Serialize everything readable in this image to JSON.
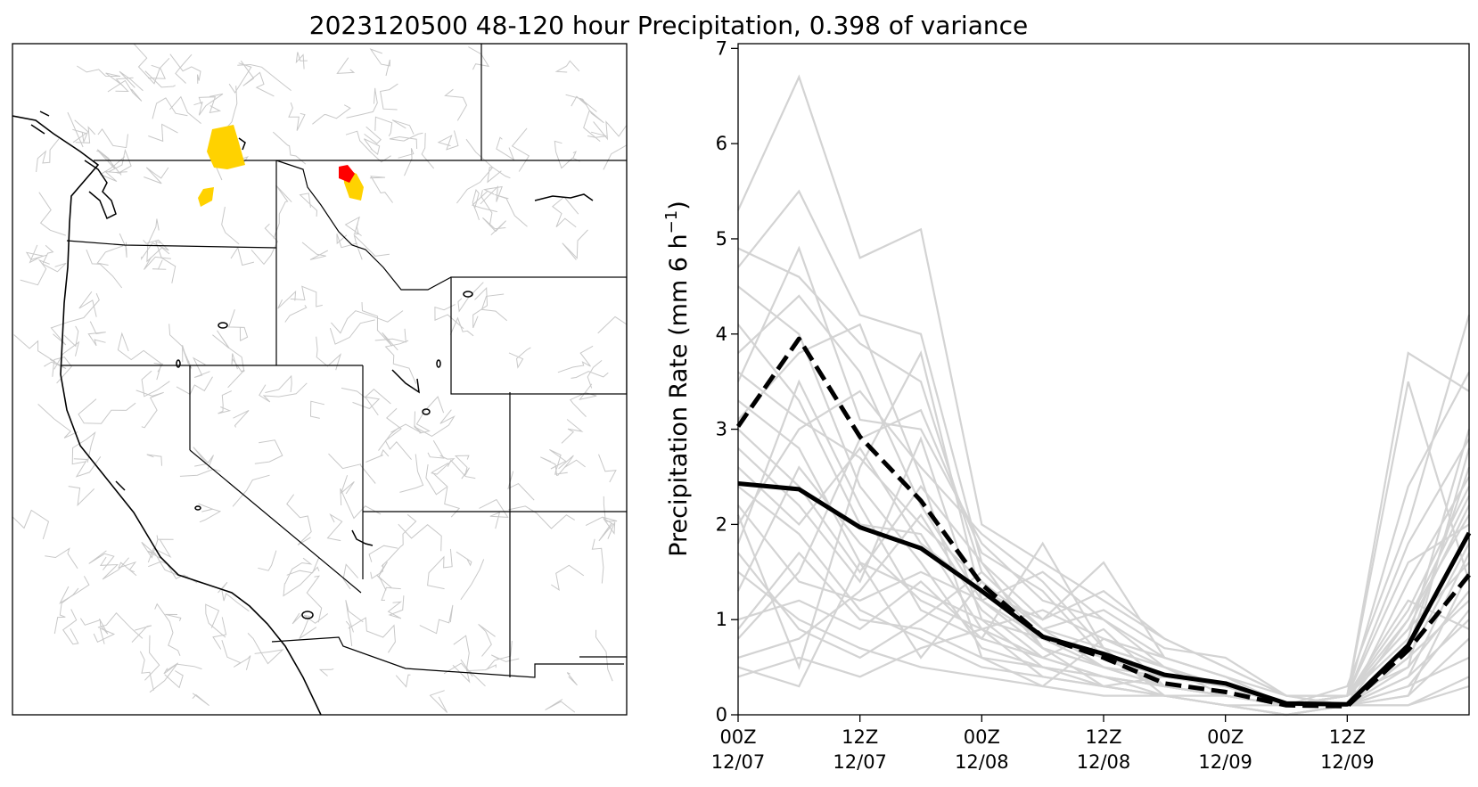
{
  "title": "2023120500 48-120 hour Precipitation, 0.398 of variance",
  "map_panel": {
    "highlight_colors": {
      "moderate": "#ffd200",
      "high": "#ff0000"
    },
    "border_color": "#000000",
    "basin_color": "#c8c8c8"
  },
  "chart_data": {
    "type": "line",
    "title": "2023120500 48-120 hour Precipitation, 0.398 of variance",
    "xlabel": "",
    "ylabel_main": "Precipitation Rate (mm 6 h",
    "ylabel_sup": "−1",
    "ylabel_tail": ")",
    "ylim": [
      0,
      7.05
    ],
    "yticks": [
      0,
      1,
      2,
      3,
      4,
      5,
      6,
      7
    ],
    "ytick_labels": [
      "0",
      "1",
      "2",
      "3",
      "4",
      "5",
      "6",
      "7"
    ],
    "xlim": [
      0,
      12
    ],
    "xticks": [
      {
        "x": 0,
        "line1": "00Z",
        "line2": "12/07"
      },
      {
        "x": 2,
        "line1": "12Z",
        "line2": "12/07"
      },
      {
        "x": 4,
        "line1": "00Z",
        "line2": "12/08"
      },
      {
        "x": 6,
        "line1": "12Z",
        "line2": "12/08"
      },
      {
        "x": 8,
        "line1": "00Z",
        "line2": "12/09"
      },
      {
        "x": 10,
        "line1": "12Z",
        "line2": "12/09"
      }
    ],
    "grid": false,
    "x": [
      0,
      1,
      2,
      3,
      4,
      5,
      6,
      7,
      8,
      9,
      10,
      11,
      12
    ],
    "solid_series": {
      "style": "solid",
      "color": "#000000",
      "values": [
        2.43,
        2.37,
        1.97,
        1.75,
        1.3,
        0.82,
        0.64,
        0.42,
        0.33,
        0.12,
        0.11,
        0.73,
        1.91
      ]
    },
    "dashed_series": {
      "style": "dashed",
      "color": "#000000",
      "values": [
        3.03,
        3.95,
        2.92,
        2.25,
        1.37,
        0.82,
        0.6,
        0.33,
        0.24,
        0.1,
        0.09,
        0.68,
        1.47
      ]
    },
    "members_color": "#d3d3d3",
    "members": [
      [
        5.3,
        6.7,
        4.8,
        5.1,
        2.0,
        1.6,
        1.2,
        0.8,
        0.5,
        0.2,
        0.2,
        3.8,
        3.4
      ],
      [
        4.7,
        5.5,
        4.2,
        4.0,
        1.6,
        1.0,
        1.6,
        0.6,
        0.4,
        0.1,
        0.2,
        3.5,
        1.4
      ],
      [
        3.5,
        4.9,
        3.1,
        3.0,
        1.8,
        1.2,
        1.0,
        0.5,
        0.3,
        0.1,
        0.3,
        2.0,
        4.2
      ],
      [
        2.1,
        0.5,
        2.6,
        3.8,
        1.2,
        0.8,
        0.5,
        0.3,
        0.2,
        0.1,
        0.1,
        0.7,
        2.6
      ],
      [
        0.5,
        0.3,
        1.6,
        0.6,
        1.4,
        0.7,
        0.3,
        0.4,
        0.3,
        0.1,
        0.2,
        1.0,
        2.3
      ],
      [
        1.0,
        1.2,
        0.9,
        1.4,
        0.8,
        1.8,
        0.7,
        0.2,
        0.1,
        0.1,
        0.2,
        1.6,
        2.0
      ],
      [
        2.8,
        2.2,
        1.4,
        2.9,
        1.0,
        0.5,
        0.4,
        0.2,
        0.1,
        0.0,
        0.1,
        0.4,
        1.7
      ],
      [
        3.1,
        3.8,
        4.1,
        2.5,
        0.6,
        0.3,
        0.8,
        0.5,
        0.2,
        0.1,
        0.2,
        0.9,
        2.2
      ],
      [
        1.7,
        0.9,
        0.6,
        1.0,
        1.5,
        0.9,
        1.1,
        0.7,
        0.6,
        0.2,
        0.1,
        0.3,
        1.1
      ],
      [
        4.1,
        3.3,
        2.0,
        1.9,
        0.9,
        0.6,
        0.4,
        0.3,
        0.2,
        0.1,
        0.1,
        0.5,
        2.8
      ],
      [
        0.8,
        1.5,
        2.9,
        3.2,
        1.7,
        1.3,
        0.6,
        0.3,
        0.2,
        0.1,
        0.2,
        1.2,
        0.9
      ],
      [
        2.4,
        1.9,
        1.1,
        0.8,
        0.5,
        0.4,
        0.3,
        0.2,
        0.1,
        0.0,
        0.1,
        0.2,
        1.5
      ],
      [
        3.8,
        4.4,
        3.6,
        2.2,
        1.2,
        0.7,
        0.5,
        0.4,
        0.3,
        0.1,
        0.2,
        0.8,
        3.0
      ],
      [
        1.3,
        2.6,
        1.8,
        1.2,
        0.9,
        1.1,
        0.8,
        0.6,
        0.4,
        0.2,
        0.1,
        0.6,
        1.8
      ],
      [
        0.6,
        0.8,
        1.3,
        2.1,
        1.1,
        0.6,
        0.9,
        0.3,
        0.2,
        0.1,
        0.1,
        0.3,
        0.6
      ],
      [
        4.5,
        4.0,
        2.4,
        1.6,
        0.7,
        0.5,
        0.3,
        0.2,
        0.2,
        0.1,
        0.1,
        1.4,
        2.5
      ],
      [
        2.0,
        3.0,
        3.4,
        2.6,
        1.9,
        1.4,
        0.7,
        0.5,
        0.3,
        0.1,
        0.2,
        0.5,
        1.3
      ],
      [
        1.5,
        1.0,
        0.7,
        0.5,
        0.4,
        0.3,
        0.2,
        0.2,
        0.1,
        0.0,
        0.1,
        0.1,
        0.4
      ],
      [
        3.3,
        2.8,
        1.6,
        1.3,
        1.0,
        0.8,
        0.6,
        0.4,
        0.3,
        0.1,
        0.1,
        1.0,
        2.1
      ],
      [
        4.9,
        4.6,
        3.9,
        3.5,
        1.5,
        0.9,
        0.5,
        0.3,
        0.2,
        0.1,
        0.2,
        2.4,
        3.6
      ],
      [
        0.9,
        1.7,
        1.0,
        0.9,
        0.6,
        0.5,
        0.4,
        0.3,
        0.2,
        0.1,
        0.1,
        0.2,
        0.8
      ],
      [
        2.6,
        2.0,
        2.8,
        1.8,
        1.3,
        1.0,
        1.3,
        0.8,
        0.5,
        0.2,
        0.2,
        0.9,
        1.6
      ],
      [
        1.8,
        3.5,
        2.2,
        1.1,
        0.8,
        0.6,
        0.4,
        0.3,
        0.2,
        0.1,
        0.1,
        0.4,
        1.0
      ],
      [
        3.0,
        2.4,
        1.5,
        2.4,
        1.6,
        0.7,
        0.5,
        0.3,
        0.2,
        0.1,
        0.2,
        1.8,
        2.9
      ],
      [
        0.4,
        0.6,
        0.4,
        0.7,
        0.9,
        0.4,
        0.3,
        0.2,
        0.1,
        0.0,
        0.1,
        0.1,
        0.3
      ],
      [
        2.2,
        1.4,
        1.2,
        1.5,
        1.2,
        1.5,
        1.0,
        0.6,
        0.4,
        0.1,
        0.1,
        0.6,
        1.2
      ],
      [
        3.6,
        3.1,
        2.7,
        2.0,
        1.4,
        0.9,
        0.7,
        0.5,
        0.3,
        0.1,
        0.2,
        1.1,
        2.4
      ]
    ]
  }
}
